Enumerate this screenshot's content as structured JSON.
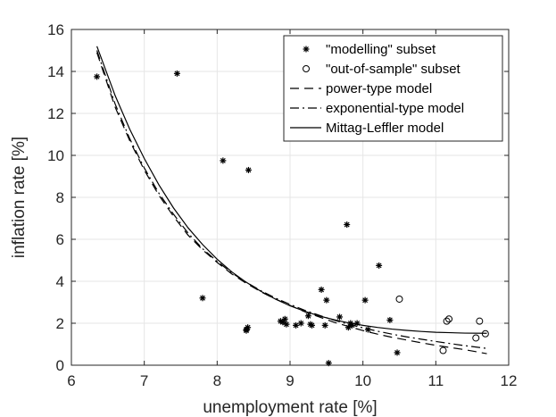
{
  "chart_data": {
    "type": "scatter",
    "xlabel": "unemployment rate [%]",
    "ylabel": "inflation rate [%]",
    "xlim": [
      6,
      12
    ],
    "ylim": [
      0,
      16
    ],
    "xticks": [
      6,
      7,
      8,
      9,
      10,
      11,
      12
    ],
    "yticks": [
      0,
      2,
      4,
      6,
      8,
      10,
      12,
      14,
      16
    ],
    "grid": true,
    "legend_position": "top-right",
    "legend": [
      "\"modelling\" subset",
      "\"out-of-sample\" subset",
      "power-type model",
      "exponential-type model",
      "Mittag-Leffler model"
    ],
    "series": [
      {
        "name": "\"modelling\" subset",
        "kind": "scatter",
        "marker": "asterisk",
        "points": [
          [
            6.35,
            13.75
          ],
          [
            7.45,
            13.9
          ],
          [
            7.8,
            3.2
          ],
          [
            8.08,
            9.75
          ],
          [
            8.43,
            9.3
          ],
          [
            8.4,
            1.7
          ],
          [
            8.42,
            1.8
          ],
          [
            8.4,
            1.65
          ],
          [
            8.9,
            2.05
          ],
          [
            8.93,
            2.2
          ],
          [
            8.95,
            1.95
          ],
          [
            8.87,
            2.1
          ],
          [
            9.08,
            1.9
          ],
          [
            9.15,
            2.0
          ],
          [
            9.25,
            2.35
          ],
          [
            9.28,
            1.95
          ],
          [
            9.3,
            1.9
          ],
          [
            9.43,
            3.6
          ],
          [
            9.48,
            1.9
          ],
          [
            9.5,
            3.1
          ],
          [
            9.53,
            0.1
          ],
          [
            9.68,
            2.3
          ],
          [
            9.78,
            6.7
          ],
          [
            9.8,
            1.8
          ],
          [
            9.83,
            2.0
          ],
          [
            9.85,
            1.9
          ],
          [
            9.92,
            2.0
          ],
          [
            10.03,
            3.1
          ],
          [
            10.07,
            1.7
          ],
          [
            10.22,
            4.75
          ],
          [
            10.37,
            2.15
          ],
          [
            10.47,
            0.6
          ]
        ]
      },
      {
        "name": "\"out-of-sample\" subset",
        "kind": "scatter",
        "marker": "circle",
        "points": [
          [
            10.5,
            3.15
          ],
          [
            11.1,
            0.7
          ],
          [
            11.15,
            2.1
          ],
          [
            11.18,
            2.2
          ],
          [
            11.55,
            1.3
          ],
          [
            11.6,
            2.1
          ],
          [
            11.68,
            1.5
          ]
        ]
      },
      {
        "name": "power-type model",
        "kind": "line",
        "style": "dashed",
        "points": [
          [
            6.35,
            14.9
          ],
          [
            6.6,
            12.3
          ],
          [
            6.8,
            10.7
          ],
          [
            7.0,
            9.3
          ],
          [
            7.2,
            8.1
          ],
          [
            7.4,
            7.1
          ],
          [
            7.6,
            6.2
          ],
          [
            7.8,
            5.5
          ],
          [
            8.0,
            4.9
          ],
          [
            8.2,
            4.35
          ],
          [
            8.4,
            3.9
          ],
          [
            8.6,
            3.5
          ],
          [
            8.8,
            3.15
          ],
          [
            9.0,
            2.85
          ],
          [
            9.2,
            2.55
          ],
          [
            9.4,
            2.3
          ],
          [
            9.6,
            2.05
          ],
          [
            9.8,
            1.85
          ],
          [
            10.0,
            1.65
          ],
          [
            10.2,
            1.48
          ],
          [
            10.4,
            1.33
          ],
          [
            10.6,
            1.2
          ],
          [
            10.8,
            1.07
          ],
          [
            11.0,
            0.95
          ],
          [
            11.2,
            0.84
          ],
          [
            11.4,
            0.74
          ],
          [
            11.7,
            0.55
          ]
        ]
      },
      {
        "name": "exponential-type model",
        "kind": "line",
        "style": "dashdot",
        "points": [
          [
            6.35,
            15.0
          ],
          [
            6.6,
            12.45
          ],
          [
            6.8,
            10.8
          ],
          [
            7.0,
            9.4
          ],
          [
            7.2,
            8.2
          ],
          [
            7.4,
            7.2
          ],
          [
            7.6,
            6.3
          ],
          [
            7.8,
            5.55
          ],
          [
            8.0,
            4.95
          ],
          [
            8.2,
            4.4
          ],
          [
            8.4,
            3.95
          ],
          [
            8.6,
            3.55
          ],
          [
            8.8,
            3.2
          ],
          [
            9.0,
            2.9
          ],
          [
            9.2,
            2.62
          ],
          [
            9.4,
            2.38
          ],
          [
            9.6,
            2.15
          ],
          [
            9.8,
            1.95
          ],
          [
            10.0,
            1.78
          ],
          [
            10.2,
            1.62
          ],
          [
            10.4,
            1.48
          ],
          [
            10.6,
            1.35
          ],
          [
            10.8,
            1.24
          ],
          [
            11.0,
            1.13
          ],
          [
            11.2,
            1.03
          ],
          [
            11.4,
            0.93
          ],
          [
            11.7,
            0.8
          ]
        ]
      },
      {
        "name": "Mittag-Leffler model",
        "kind": "line",
        "style": "solid",
        "points": [
          [
            6.35,
            15.2
          ],
          [
            6.6,
            12.85
          ],
          [
            6.8,
            11.25
          ],
          [
            7.0,
            9.85
          ],
          [
            7.2,
            8.6
          ],
          [
            7.4,
            7.5
          ],
          [
            7.6,
            6.55
          ],
          [
            7.8,
            5.75
          ],
          [
            8.0,
            5.05
          ],
          [
            8.2,
            4.45
          ],
          [
            8.4,
            3.95
          ],
          [
            8.6,
            3.52
          ],
          [
            8.8,
            3.15
          ],
          [
            9.0,
            2.83
          ],
          [
            9.2,
            2.57
          ],
          [
            9.4,
            2.35
          ],
          [
            9.6,
            2.17
          ],
          [
            9.8,
            2.02
          ],
          [
            10.0,
            1.9
          ],
          [
            10.2,
            1.8
          ],
          [
            10.4,
            1.72
          ],
          [
            10.6,
            1.66
          ],
          [
            10.8,
            1.61
          ],
          [
            11.0,
            1.57
          ],
          [
            11.2,
            1.55
          ],
          [
            11.4,
            1.53
          ],
          [
            11.7,
            1.52
          ]
        ]
      }
    ]
  }
}
